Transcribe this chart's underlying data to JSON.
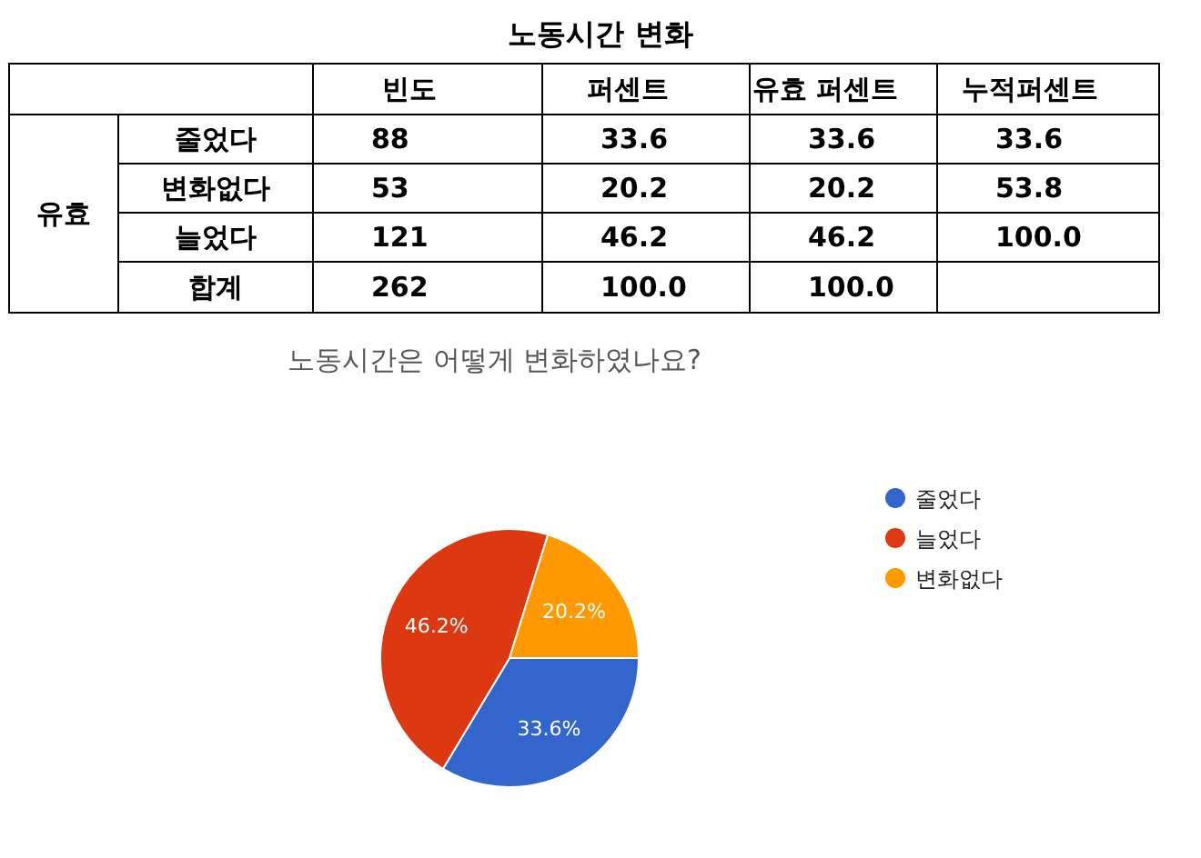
{
  "chart_data": [
    {
      "type": "other",
      "title": "노동시간 변화",
      "ylabel": "유효",
      "categories": [
        "빈도",
        "퍼센트",
        "유효 퍼센트",
        "누적퍼센트"
      ],
      "y_categories": [
        "줄었다",
        "변화없다",
        "늘었다",
        "합계"
      ],
      "cell_labels": [
        [
          "88",
          "33.6",
          "33.6",
          "33.6"
        ],
        [
          "53",
          "20.2",
          "20.2",
          "53.8"
        ],
        [
          "121",
          "46.2",
          "46.2",
          "100.0"
        ],
        [
          "262",
          "100.0",
          "100.0",
          null
        ]
      ]
    },
    {
      "type": "pie",
      "title": "노동시간은 어떻게 변화하였나요?",
      "categories": [
        "줄었다",
        "늘었다",
        "변화없다"
      ],
      "values": [
        33.6,
        46.2,
        20.2
      ],
      "colors": [
        "#3366cc",
        "#dc3912",
        "#ff9900"
      ],
      "value_labels": [
        "33.6%",
        "46.2%",
        "20.2%"
      ],
      "legend": "right"
    }
  ]
}
